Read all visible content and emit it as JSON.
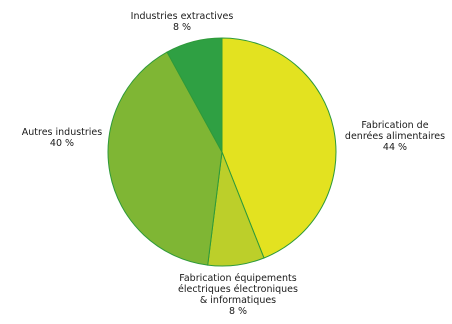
{
  "chart_data": {
    "type": "pie",
    "slices": [
      {
        "label_lines": [
          "Fabrication de",
          "denrées alimentaires"
        ],
        "value": 44,
        "value_label": "44 %",
        "color": "#e3e220"
      },
      {
        "label_lines": [
          "Fabrication équipements",
          "électriques électroniques",
          "& informatiques"
        ],
        "value": 8,
        "value_label": "8 %",
        "color": "#bccf2a"
      },
      {
        "label_lines": [
          "Autres industries"
        ],
        "value": 40,
        "value_label": "40 %",
        "color": "#7fb634"
      },
      {
        "label_lines": [
          "Industries extractives"
        ],
        "value": 8,
        "value_label": "8 %",
        "color": "#2fa043"
      }
    ],
    "start": "top",
    "direction": "clockwise",
    "legend": "none",
    "label_placement": "outside"
  }
}
